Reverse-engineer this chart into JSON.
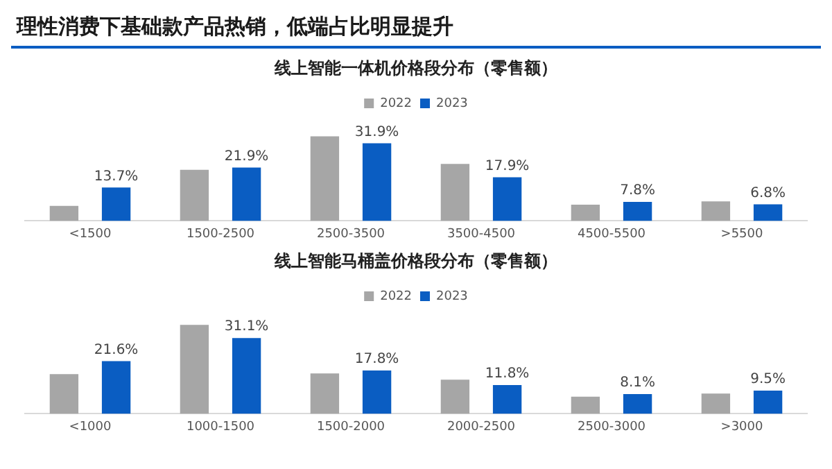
{
  "chart_data": [
    {
      "type": "other",
      "title": "理性消费下基础款产品热销，低端占比明显提升"
    },
    {
      "type": "bar",
      "title": "线上智能一体机价格段分布（零售额）",
      "categories": [
        "<1500",
        "1500-2500",
        "2500-3500",
        "3500-4500",
        "4500-5500",
        ">5500"
      ],
      "series": [
        {
          "name": "2022",
          "color": "#a6a6a6",
          "values": [
            6.2,
            21.0,
            34.7,
            23.4,
            6.7,
            8.0
          ]
        },
        {
          "name": "2023",
          "color": "#0a5dc2",
          "values": [
            13.7,
            21.9,
            31.9,
            17.9,
            7.8,
            6.8
          ],
          "value_labels": [
            "13.7%",
            "21.9%",
            "31.9%",
            "17.9%",
            "7.8%",
            "6.8%"
          ]
        }
      ],
      "legend": "top",
      "grid": false,
      "tick_labels": "x"
    },
    {
      "type": "bar",
      "title": "线上智能马桶盖价格段分布（零售额）",
      "categories": [
        "<1000",
        "1000-1500",
        "1500-2000",
        "2000-2500",
        "2500-3000",
        ">3000"
      ],
      "series": [
        {
          "name": "2022",
          "color": "#a6a6a6",
          "values": [
            16.3,
            36.5,
            16.6,
            14.0,
            7.0,
            8.3
          ]
        },
        {
          "name": "2023",
          "color": "#0a5dc2",
          "values": [
            21.6,
            31.1,
            17.8,
            11.8,
            8.1,
            9.5
          ],
          "value_labels": [
            "21.6%",
            "31.1%",
            "17.8%",
            "11.8%",
            "8.1%",
            "9.5%"
          ]
        }
      ],
      "legend": "top",
      "grid": false,
      "tick_labels": "x"
    }
  ]
}
